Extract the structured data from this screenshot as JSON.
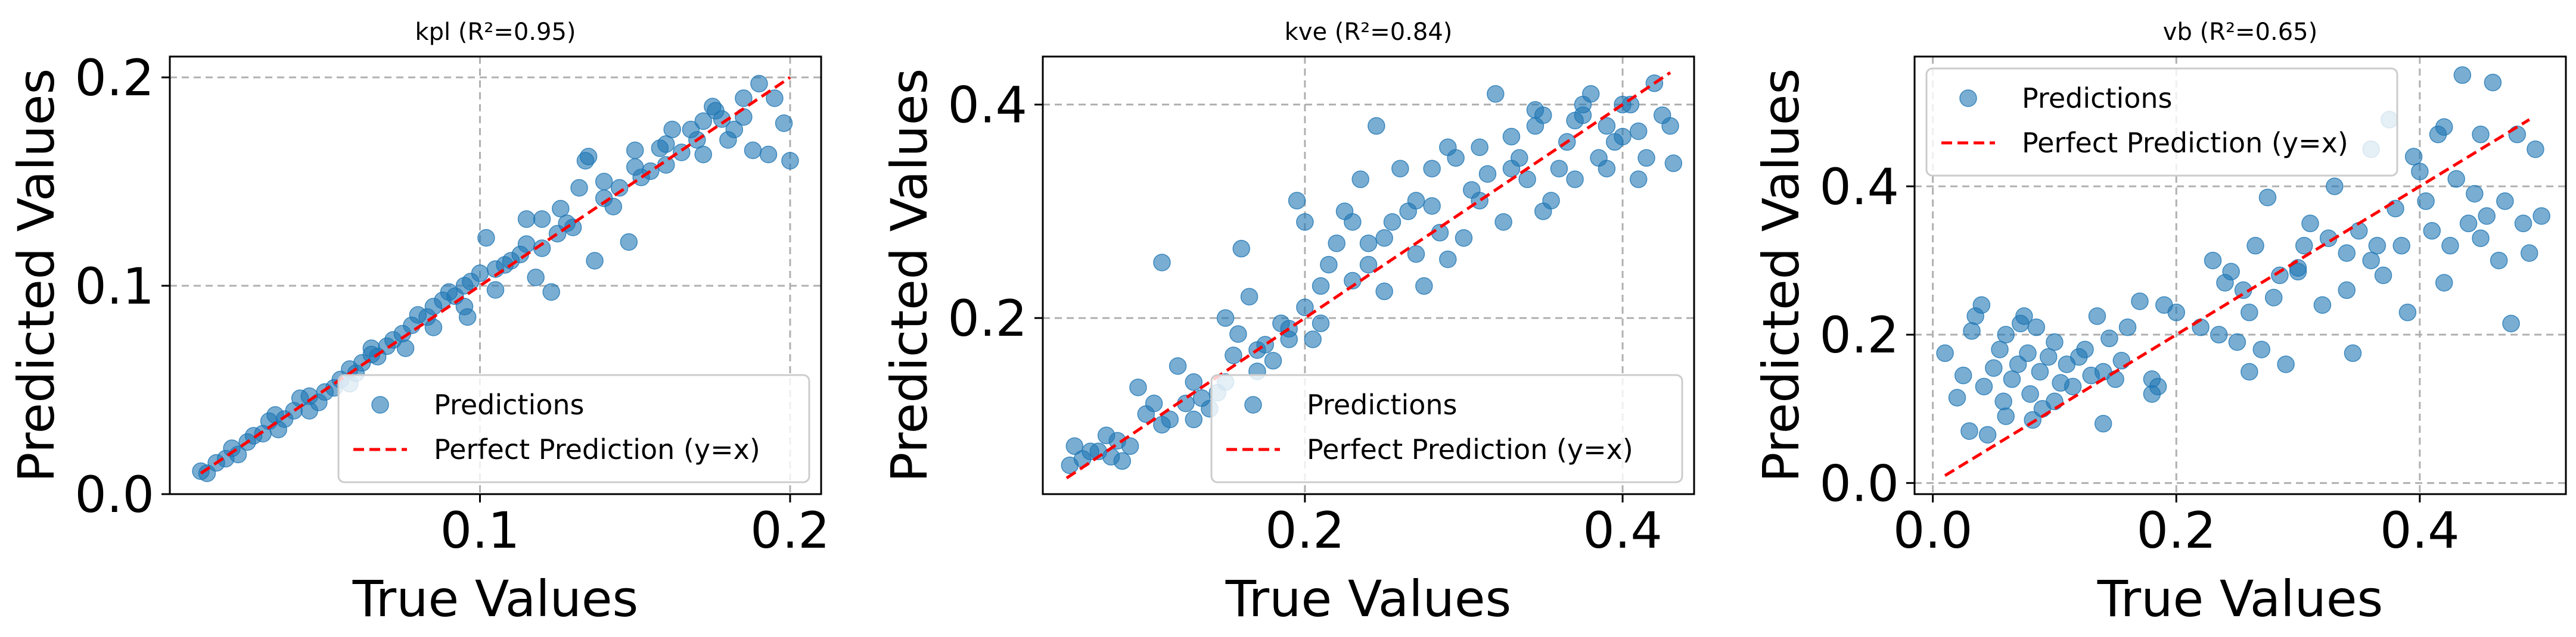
{
  "chart_data": [
    {
      "type": "scatter",
      "title": "kpl (R²=0.95)",
      "xlabel": "True Values",
      "ylabel": "Predicted Values",
      "xlim": [
        0.0,
        0.21
      ],
      "ylim": [
        0.0,
        0.21
      ],
      "xticks": [
        0.1,
        0.2
      ],
      "xtick_labels": [
        "0.1",
        "0.2"
      ],
      "yticks": [
        0.0,
        0.1,
        0.2
      ],
      "ytick_labels": [
        "0.0",
        "0.1",
        "0.2"
      ],
      "grid": true,
      "legend_position": "lower-right",
      "legend": [
        "Predictions",
        "Perfect Prediction (y=x)"
      ],
      "perfect_line": [
        0.01,
        0.2
      ],
      "points": [
        [
          0.01,
          0.011
        ],
        [
          0.012,
          0.01
        ],
        [
          0.015,
          0.015
        ],
        [
          0.018,
          0.017
        ],
        [
          0.02,
          0.022
        ],
        [
          0.022,
          0.019
        ],
        [
          0.025,
          0.025
        ],
        [
          0.027,
          0.028
        ],
        [
          0.03,
          0.029
        ],
        [
          0.032,
          0.035
        ],
        [
          0.035,
          0.031
        ],
        [
          0.037,
          0.036
        ],
        [
          0.04,
          0.04
        ],
        [
          0.042,
          0.046
        ],
        [
          0.045,
          0.047
        ],
        [
          0.048,
          0.044
        ],
        [
          0.05,
          0.049
        ],
        [
          0.053,
          0.051
        ],
        [
          0.055,
          0.055
        ],
        [
          0.058,
          0.06
        ],
        [
          0.06,
          0.058
        ],
        [
          0.062,
          0.063
        ],
        [
          0.065,
          0.07
        ],
        [
          0.067,
          0.066
        ],
        [
          0.07,
          0.071
        ],
        [
          0.072,
          0.074
        ],
        [
          0.075,
          0.077
        ],
        [
          0.078,
          0.081
        ],
        [
          0.08,
          0.086
        ],
        [
          0.083,
          0.085
        ],
        [
          0.085,
          0.08
        ],
        [
          0.088,
          0.093
        ],
        [
          0.09,
          0.097
        ],
        [
          0.092,
          0.095
        ],
        [
          0.095,
          0.1
        ],
        [
          0.097,
          0.102
        ],
        [
          0.1,
          0.106
        ],
        [
          0.102,
          0.123
        ],
        [
          0.105,
          0.098
        ],
        [
          0.108,
          0.11
        ],
        [
          0.11,
          0.112
        ],
        [
          0.113,
          0.115
        ],
        [
          0.115,
          0.132
        ],
        [
          0.118,
          0.104
        ],
        [
          0.12,
          0.118
        ],
        [
          0.123,
          0.097
        ],
        [
          0.125,
          0.125
        ],
        [
          0.128,
          0.13
        ],
        [
          0.13,
          0.128
        ],
        [
          0.132,
          0.147
        ],
        [
          0.135,
          0.162
        ],
        [
          0.137,
          0.112
        ],
        [
          0.14,
          0.142
        ],
        [
          0.143,
          0.138
        ],
        [
          0.145,
          0.147
        ],
        [
          0.148,
          0.121
        ],
        [
          0.15,
          0.157
        ],
        [
          0.152,
          0.152
        ],
        [
          0.155,
          0.155
        ],
        [
          0.158,
          0.166
        ],
        [
          0.16,
          0.158
        ],
        [
          0.162,
          0.175
        ],
        [
          0.165,
          0.164
        ],
        [
          0.168,
          0.175
        ],
        [
          0.17,
          0.17
        ],
        [
          0.172,
          0.163
        ],
        [
          0.175,
          0.186
        ],
        [
          0.178,
          0.18
        ],
        [
          0.18,
          0.17
        ],
        [
          0.182,
          0.175
        ],
        [
          0.185,
          0.19
        ],
        [
          0.188,
          0.165
        ],
        [
          0.19,
          0.197
        ],
        [
          0.193,
          0.163
        ],
        [
          0.195,
          0.19
        ],
        [
          0.198,
          0.178
        ],
        [
          0.2,
          0.16
        ],
        [
          0.045,
          0.04
        ],
        [
          0.065,
          0.067
        ],
        [
          0.085,
          0.09
        ],
        [
          0.105,
          0.108
        ],
        [
          0.12,
          0.132
        ],
        [
          0.14,
          0.15
        ],
        [
          0.16,
          0.168
        ],
        [
          0.176,
          0.184
        ],
        [
          0.134,
          0.16
        ],
        [
          0.126,
          0.137
        ],
        [
          0.115,
          0.12
        ],
        [
          0.095,
          0.09
        ],
        [
          0.076,
          0.07
        ],
        [
          0.058,
          0.053
        ],
        [
          0.034,
          0.038
        ],
        [
          0.15,
          0.165
        ],
        [
          0.172,
          0.179
        ],
        [
          0.185,
          0.181
        ],
        [
          0.096,
          0.085
        ]
      ]
    },
    {
      "type": "scatter",
      "title": "kve (R²=0.84)",
      "xlabel": "True Values",
      "ylabel": "Predicted Values",
      "xlim": [
        0.035,
        0.445
      ],
      "ylim": [
        0.035,
        0.445
      ],
      "xticks": [
        0.2,
        0.4
      ],
      "xtick_labels": [
        "0.2",
        "0.4"
      ],
      "yticks": [
        0.2,
        0.4
      ],
      "ytick_labels": [
        "0.2",
        "0.4"
      ],
      "grid": true,
      "legend_position": "lower-right",
      "legend": [
        "Predictions",
        "Perfect Prediction (y=x)"
      ],
      "perfect_line": [
        0.05,
        0.43
      ],
      "points": [
        [
          0.052,
          0.062
        ],
        [
          0.055,
          0.08
        ],
        [
          0.06,
          0.068
        ],
        [
          0.065,
          0.075
        ],
        [
          0.07,
          0.075
        ],
        [
          0.075,
          0.09
        ],
        [
          0.078,
          0.07
        ],
        [
          0.082,
          0.085
        ],
        [
          0.085,
          0.066
        ],
        [
          0.09,
          0.08
        ],
        [
          0.095,
          0.135
        ],
        [
          0.1,
          0.11
        ],
        [
          0.105,
          0.12
        ],
        [
          0.11,
          0.252
        ],
        [
          0.115,
          0.105
        ],
        [
          0.12,
          0.155
        ],
        [
          0.125,
          0.12
        ],
        [
          0.13,
          0.14
        ],
        [
          0.135,
          0.125
        ],
        [
          0.14,
          0.115
        ],
        [
          0.145,
          0.13
        ],
        [
          0.15,
          0.14
        ],
        [
          0.155,
          0.165
        ],
        [
          0.158,
          0.185
        ],
        [
          0.16,
          0.265
        ],
        [
          0.165,
          0.22
        ],
        [
          0.17,
          0.15
        ],
        [
          0.175,
          0.175
        ],
        [
          0.18,
          0.16
        ],
        [
          0.185,
          0.195
        ],
        [
          0.19,
          0.19
        ],
        [
          0.195,
          0.31
        ],
        [
          0.2,
          0.29
        ],
        [
          0.205,
          0.18
        ],
        [
          0.21,
          0.23
        ],
        [
          0.215,
          0.25
        ],
        [
          0.22,
          0.27
        ],
        [
          0.225,
          0.3
        ],
        [
          0.23,
          0.29
        ],
        [
          0.235,
          0.33
        ],
        [
          0.24,
          0.25
        ],
        [
          0.245,
          0.38
        ],
        [
          0.25,
          0.275
        ],
        [
          0.255,
          0.29
        ],
        [
          0.26,
          0.34
        ],
        [
          0.265,
          0.3
        ],
        [
          0.27,
          0.26
        ],
        [
          0.275,
          0.23
        ],
        [
          0.28,
          0.305
        ],
        [
          0.285,
          0.28
        ],
        [
          0.29,
          0.36
        ],
        [
          0.295,
          0.35
        ],
        [
          0.3,
          0.275
        ],
        [
          0.305,
          0.32
        ],
        [
          0.31,
          0.31
        ],
        [
          0.315,
          0.335
        ],
        [
          0.32,
          0.41
        ],
        [
          0.325,
          0.29
        ],
        [
          0.33,
          0.37
        ],
        [
          0.335,
          0.35
        ],
        [
          0.34,
          0.33
        ],
        [
          0.345,
          0.38
        ],
        [
          0.35,
          0.39
        ],
        [
          0.355,
          0.31
        ],
        [
          0.36,
          0.34
        ],
        [
          0.365,
          0.365
        ],
        [
          0.37,
          0.33
        ],
        [
          0.375,
          0.39
        ],
        [
          0.38,
          0.41
        ],
        [
          0.385,
          0.35
        ],
        [
          0.39,
          0.38
        ],
        [
          0.395,
          0.365
        ],
        [
          0.4,
          0.37
        ],
        [
          0.405,
          0.4
        ],
        [
          0.41,
          0.33
        ],
        [
          0.415,
          0.35
        ],
        [
          0.42,
          0.42
        ],
        [
          0.425,
          0.39
        ],
        [
          0.43,
          0.38
        ],
        [
          0.432,
          0.345
        ],
        [
          0.15,
          0.2
        ],
        [
          0.17,
          0.17
        ],
        [
          0.19,
          0.18
        ],
        [
          0.21,
          0.195
        ],
        [
          0.23,
          0.235
        ],
        [
          0.25,
          0.225
        ],
        [
          0.27,
          0.31
        ],
        [
          0.29,
          0.255
        ],
        [
          0.31,
          0.36
        ],
        [
          0.33,
          0.34
        ],
        [
          0.35,
          0.3
        ],
        [
          0.37,
          0.385
        ],
        [
          0.39,
          0.34
        ],
        [
          0.41,
          0.375
        ],
        [
          0.13,
          0.105
        ],
        [
          0.11,
          0.1
        ],
        [
          0.2,
          0.21
        ],
        [
          0.24,
          0.27
        ],
        [
          0.28,
          0.34
        ],
        [
          0.345,
          0.395
        ],
        [
          0.375,
          0.4
        ],
        [
          0.4,
          0.4
        ]
      ]
    },
    {
      "type": "scatter",
      "title": "vb (R²=0.65)",
      "xlabel": "True Values",
      "ylabel": "Predicted Values",
      "xlim": [
        -0.015,
        0.52
      ],
      "ylim": [
        -0.015,
        0.575
      ],
      "xticks": [
        0.0,
        0.2,
        0.4
      ],
      "xtick_labels": [
        "0.0",
        "0.2",
        "0.4"
      ],
      "yticks": [
        0.0,
        0.2,
        0.4
      ],
      "ytick_labels": [
        "0.0",
        "0.2",
        "0.4"
      ],
      "grid": true,
      "legend_position": "top-left",
      "legend": [
        "Predictions",
        "Perfect Prediction (y=x)"
      ],
      "perfect_line": [
        0.01,
        0.49
      ],
      "points": [
        [
          0.01,
          0.175
        ],
        [
          0.02,
          0.115
        ],
        [
          0.025,
          0.145
        ],
        [
          0.03,
          0.07
        ],
        [
          0.032,
          0.205
        ],
        [
          0.035,
          0.225
        ],
        [
          0.04,
          0.24
        ],
        [
          0.042,
          0.13
        ],
        [
          0.045,
          0.065
        ],
        [
          0.05,
          0.155
        ],
        [
          0.055,
          0.18
        ],
        [
          0.058,
          0.11
        ],
        [
          0.06,
          0.2
        ],
        [
          0.065,
          0.14
        ],
        [
          0.07,
          0.16
        ],
        [
          0.072,
          0.215
        ],
        [
          0.075,
          0.225
        ],
        [
          0.078,
          0.175
        ],
        [
          0.08,
          0.12
        ],
        [
          0.082,
          0.085
        ],
        [
          0.085,
          0.21
        ],
        [
          0.088,
          0.15
        ],
        [
          0.09,
          0.1
        ],
        [
          0.095,
          0.17
        ],
        [
          0.1,
          0.19
        ],
        [
          0.105,
          0.135
        ],
        [
          0.11,
          0.16
        ],
        [
          0.115,
          0.13
        ],
        [
          0.12,
          0.17
        ],
        [
          0.125,
          0.18
        ],
        [
          0.13,
          0.145
        ],
        [
          0.135,
          0.225
        ],
        [
          0.14,
          0.08
        ],
        [
          0.145,
          0.195
        ],
        [
          0.15,
          0.14
        ],
        [
          0.155,
          0.165
        ],
        [
          0.16,
          0.21
        ],
        [
          0.17,
          0.245
        ],
        [
          0.18,
          0.14
        ],
        [
          0.185,
          0.13
        ],
        [
          0.19,
          0.24
        ],
        [
          0.2,
          0.23
        ],
        [
          0.22,
          0.21
        ],
        [
          0.23,
          0.3
        ],
        [
          0.235,
          0.2
        ],
        [
          0.24,
          0.27
        ],
        [
          0.245,
          0.285
        ],
        [
          0.25,
          0.19
        ],
        [
          0.255,
          0.26
        ],
        [
          0.26,
          0.23
        ],
        [
          0.265,
          0.32
        ],
        [
          0.27,
          0.18
        ],
        [
          0.275,
          0.385
        ],
        [
          0.28,
          0.25
        ],
        [
          0.285,
          0.28
        ],
        [
          0.29,
          0.16
        ],
        [
          0.3,
          0.285
        ],
        [
          0.305,
          0.32
        ],
        [
          0.31,
          0.35
        ],
        [
          0.32,
          0.24
        ],
        [
          0.325,
          0.33
        ],
        [
          0.33,
          0.4
        ],
        [
          0.34,
          0.31
        ],
        [
          0.345,
          0.175
        ],
        [
          0.35,
          0.34
        ],
        [
          0.36,
          0.3
        ],
        [
          0.365,
          0.32
        ],
        [
          0.37,
          0.28
        ],
        [
          0.375,
          0.49
        ],
        [
          0.38,
          0.37
        ],
        [
          0.385,
          0.32
        ],
        [
          0.39,
          0.23
        ],
        [
          0.395,
          0.44
        ],
        [
          0.4,
          0.42
        ],
        [
          0.405,
          0.38
        ],
        [
          0.41,
          0.34
        ],
        [
          0.415,
          0.47
        ],
        [
          0.42,
          0.27
        ],
        [
          0.425,
          0.32
        ],
        [
          0.43,
          0.41
        ],
        [
          0.435,
          0.55
        ],
        [
          0.44,
          0.35
        ],
        [
          0.445,
          0.39
        ],
        [
          0.45,
          0.47
        ],
        [
          0.455,
          0.36
        ],
        [
          0.46,
          0.54
        ],
        [
          0.465,
          0.3
        ],
        [
          0.47,
          0.38
        ],
        [
          0.475,
          0.215
        ],
        [
          0.48,
          0.47
        ],
        [
          0.485,
          0.35
        ],
        [
          0.49,
          0.31
        ],
        [
          0.495,
          0.45
        ],
        [
          0.5,
          0.36
        ],
        [
          0.18,
          0.12
        ],
        [
          0.14,
          0.15
        ],
        [
          0.06,
          0.09
        ],
        [
          0.1,
          0.11
        ],
        [
          0.26,
          0.15
        ],
        [
          0.3,
          0.29
        ],
        [
          0.34,
          0.26
        ],
        [
          0.36,
          0.45
        ],
        [
          0.42,
          0.48
        ],
        [
          0.45,
          0.33
        ]
      ]
    }
  ]
}
